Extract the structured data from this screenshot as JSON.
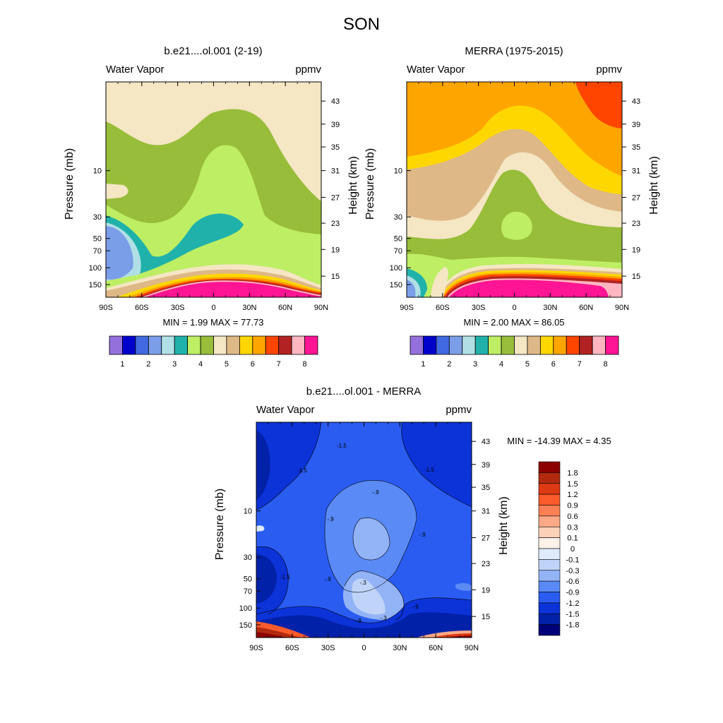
{
  "figure_title": "SON",
  "chart_data": [
    {
      "type": "heatmap",
      "title": "b.e21....ol.001 (2-19)",
      "left_label": "Water Vapor",
      "right_label": "ppmv",
      "xlabel": "",
      "ylabel": "Pressure (mb)",
      "ylabel_right": "Height (km)",
      "x_ticks": [
        "90S",
        "60S",
        "30S",
        "0",
        "30N",
        "60N",
        "90N"
      ],
      "y_ticks": [
        "10",
        "30",
        "50",
        "70",
        "100",
        "150"
      ],
      "height_ticks": [
        "43",
        "39",
        "35",
        "31",
        "27",
        "23",
        "19",
        "15"
      ],
      "min_max_text": "MIN =   1.99  MAX =  77.73",
      "colorbar": {
        "labels": [
          "1",
          "2",
          "3",
          "4",
          "5",
          "6",
          "7",
          "8"
        ],
        "colors": [
          "#9370db",
          "#0000cd",
          "#4169e1",
          "#7b9ee8",
          "#b0e0e6",
          "#20b2aa",
          "#bdee64",
          "#98bd3a",
          "#f5e6c4",
          "#deb887",
          "#ffd700",
          "#ffa500",
          "#ff4500",
          "#b22222",
          "#ffb6c1",
          "#ff1493"
        ]
      }
    },
    {
      "type": "heatmap",
      "title": "MERRA (1975-2015)",
      "left_label": "Water Vapor",
      "right_label": "ppmv",
      "xlabel": "",
      "ylabel": "Pressure (mb)",
      "ylabel_right": "Height (km)",
      "x_ticks": [
        "90S",
        "60S",
        "30S",
        "0",
        "30N",
        "60N",
        "90N"
      ],
      "y_ticks": [
        "10",
        "30",
        "50",
        "70",
        "100",
        "150"
      ],
      "height_ticks": [
        "43",
        "39",
        "35",
        "31",
        "27",
        "23",
        "19",
        "15"
      ],
      "min_max_text": "MIN =   2.00  MAX =  86.05",
      "colorbar": {
        "labels": [
          "1",
          "2",
          "3",
          "4",
          "5",
          "6",
          "7",
          "8"
        ],
        "colors": [
          "#9370db",
          "#0000cd",
          "#4169e1",
          "#7b9ee8",
          "#b0e0e6",
          "#20b2aa",
          "#bdee64",
          "#98bd3a",
          "#f5e6c4",
          "#deb887",
          "#ffd700",
          "#ffa500",
          "#ff4500",
          "#b22222",
          "#ffb6c1",
          "#ff1493"
        ]
      }
    },
    {
      "type": "heatmap",
      "title": "b.e21....ol.001 - MERRA",
      "left_label": "Water Vapor",
      "right_label": "ppmv",
      "xlabel": "",
      "ylabel": "Pressure (mb)",
      "ylabel_right": "Height (km)",
      "x_ticks": [
        "90S",
        "60S",
        "30S",
        "0",
        "30N",
        "60N",
        "90N"
      ],
      "y_ticks": [
        "10",
        "30",
        "50",
        "70",
        "100",
        "150"
      ],
      "height_ticks": [
        "43",
        "39",
        "35",
        "31",
        "27",
        "23",
        "19",
        "15"
      ],
      "min_max_text": "MIN = -14.39  MAX =   4.35",
      "contour_labels": [
        "-1.5",
        "-1.5",
        "-1.5",
        "-.9",
        "-.9",
        "-.9",
        "-.9",
        "-.9",
        "-.3",
        "-.3",
        "-1.5",
        "-.9"
      ],
      "colorbar": {
        "labels": [
          "1.8",
          "1.5",
          "1.2",
          "0.9",
          "0.6",
          "0.3",
          "0.1",
          "0",
          "-0.1",
          "-0.3",
          "-0.6",
          "-0.9",
          "-1.2",
          "-1.5",
          "-1.8"
        ],
        "colors": [
          "#8b0000",
          "#b22a0e",
          "#dd3a13",
          "#fc5b2c",
          "#fd8055",
          "#fca987",
          "#fcd1b8",
          "#fdf2ea",
          "#dfeafb",
          "#bfd4f8",
          "#93b3f7",
          "#5a8af5",
          "#2a5cf2",
          "#0c33d8",
          "#0021a8",
          "#00007a"
        ]
      }
    }
  ]
}
